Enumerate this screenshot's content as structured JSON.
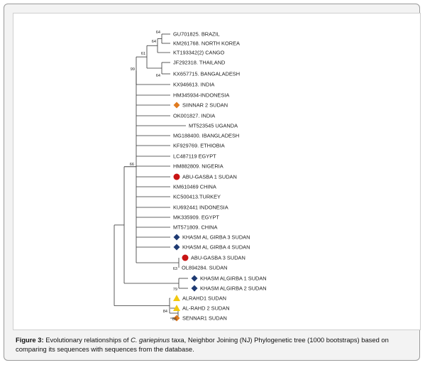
{
  "tree": {
    "leaves": [
      {
        "label": "GU701825. BRAZIL",
        "marker": null
      },
      {
        "label": "KM261768. NORTH KOREA",
        "marker": null
      },
      {
        "label": "KT193342(2) CANGO",
        "marker": null
      },
      {
        "label": "JF292318. THAILAND",
        "marker": null
      },
      {
        "label": "KX657715. BANGALADESH",
        "marker": null
      },
      {
        "label": "KX946613. INDIA",
        "marker": null
      },
      {
        "label": "HM345934-INDONESIA",
        "marker": null
      },
      {
        "label": "SIINNAR 2 SUDAN",
        "marker": "diamond-orange"
      },
      {
        "label": "OK001827. INDIA",
        "marker": null
      },
      {
        "label": "MT523545 UGANDA",
        "marker": null
      },
      {
        "label": "MG188400. IBANGLADESH",
        "marker": null
      },
      {
        "label": "KF929769. ETHIOBIA",
        "marker": null
      },
      {
        "label": "LC487119 EGYPT",
        "marker": null
      },
      {
        "label": "HM882809. NIGERIA",
        "marker": null
      },
      {
        "label": "ABU-GASBA 1 SUDAN",
        "marker": "circle-red"
      },
      {
        "label": "KM610469 CHINA",
        "marker": null
      },
      {
        "label": "KC500413.TURKEY",
        "marker": null
      },
      {
        "label": "KU692441 INDONESIA",
        "marker": null
      },
      {
        "label": "MK335909. EGYPT",
        "marker": null
      },
      {
        "label": "MT571809. CHINA",
        "marker": null
      },
      {
        "label": "KHASM AL GIRBA 3 SUDAN",
        "marker": "diamond-navy"
      },
      {
        "label": "KHASM AL GIRBA 4 SUDAN",
        "marker": "diamond-navy"
      },
      {
        "label": "ABU-GASBA 3 SUDAN",
        "marker": "circle-red"
      },
      {
        "label": "OL894284. SUDAN",
        "marker": null
      },
      {
        "label": "KHASM ALGIRBA 1 SUDAN",
        "marker": "diamond-navy"
      },
      {
        "label": "KHASM ALGIRBA 2 SUDAN",
        "marker": "diamond-navy"
      },
      {
        "label": "ALRAHD1 SUDAN",
        "marker": "triangle-yellow"
      },
      {
        "label": "AL-RAHD 2 SUDAN",
        "marker": "triangle-yellow"
      },
      {
        "label": "SENNAR1 SUDAN",
        "marker": "diamond-orange"
      }
    ],
    "bootstrap": {
      "brazil_northkorea": "64",
      "plus_cango": "64",
      "plus_thailand": "61",
      "thailand_bangladesh": "64",
      "top_clade": "99",
      "main_clade": "66",
      "abugasba3_sudan": "63",
      "khasm_1_2": "79",
      "alrahd_1_2": "84",
      "alrahd2_sennar": "86"
    }
  },
  "caption": {
    "label": "Figure 3:",
    "text_before": " Evolutionary relationships of ",
    "species": "C. gariepinus",
    "text_after": " taxa, Neighbor Joining (NJ) Phylogenetic tree (1000 bootstraps) based on comparing its sequences with sequences from the database."
  },
  "colors": {
    "line": "#333333",
    "diamond-orange": "#e07b1f",
    "diamond-navy": "#1f3b73",
    "circle-red": "#c81414",
    "triangle-yellow": "#f2c80f"
  }
}
